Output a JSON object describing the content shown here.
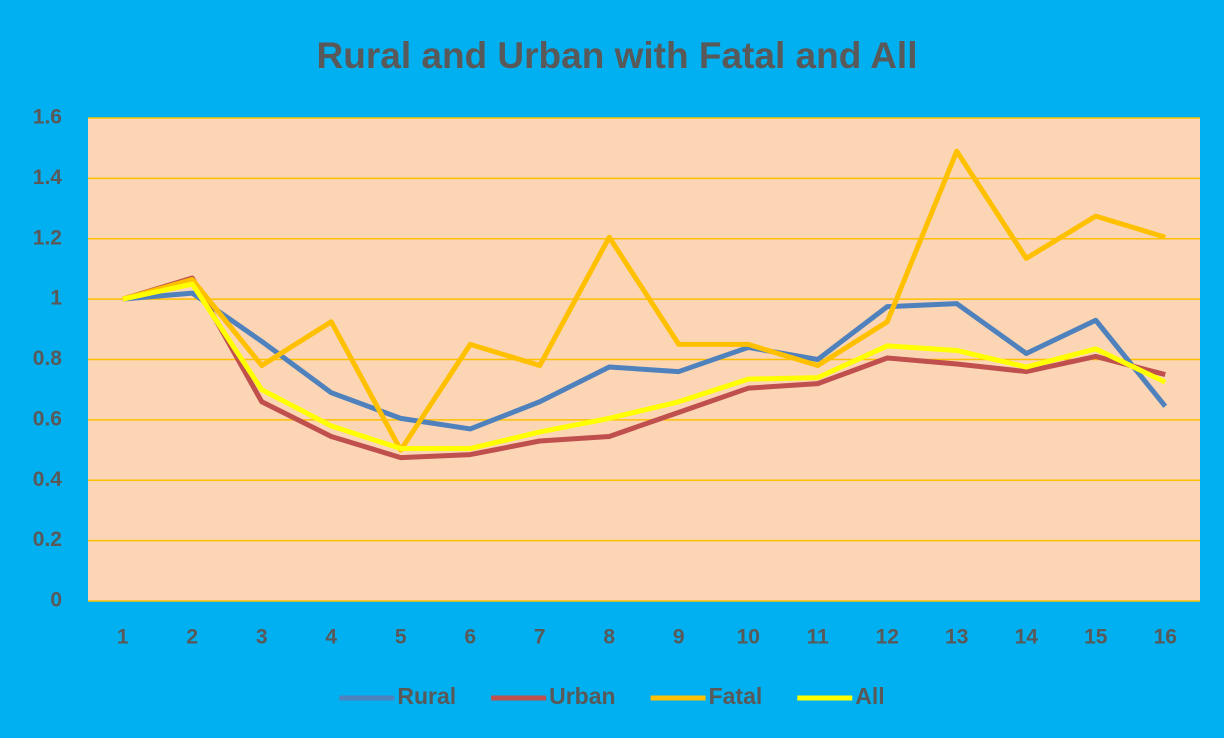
{
  "chart_data": {
    "type": "line",
    "title": "Rural and Urban with Fatal and All",
    "categories": [
      "1",
      "2",
      "3",
      "4",
      "5",
      "6",
      "7",
      "8",
      "9",
      "10",
      "11",
      "12",
      "13",
      "14",
      "15",
      "16"
    ],
    "series": [
      {
        "name": "Rural",
        "color": "#4f81bd",
        "values": [
          1.0,
          1.02,
          0.86,
          0.69,
          0.605,
          0.57,
          0.66,
          0.775,
          0.76,
          0.84,
          0.8,
          0.975,
          0.985,
          0.82,
          0.93,
          0.645
        ]
      },
      {
        "name": "Urban",
        "color": "#c0504d",
        "values": [
          1.0,
          1.07,
          0.66,
          0.545,
          0.475,
          0.485,
          0.53,
          0.545,
          0.625,
          0.705,
          0.72,
          0.805,
          0.785,
          0.76,
          0.81,
          0.75
        ]
      },
      {
        "name": "Fatal",
        "color": "#ffc000",
        "values": [
          1.0,
          1.065,
          0.78,
          0.925,
          0.5,
          0.85,
          0.78,
          1.205,
          0.85,
          0.85,
          0.78,
          0.925,
          1.49,
          1.135,
          1.275,
          1.205
        ]
      },
      {
        "name": "All",
        "color": "#ffff00",
        "values": [
          1.0,
          1.05,
          0.7,
          0.58,
          0.505,
          0.505,
          0.56,
          0.605,
          0.66,
          0.735,
          0.74,
          0.845,
          0.83,
          0.775,
          0.835,
          0.725
        ]
      }
    ],
    "ylim": [
      0,
      1.6
    ],
    "yticks": [
      0,
      0.2,
      0.4,
      0.6,
      0.8,
      1,
      1.2,
      1.4,
      1.6
    ],
    "grid": true,
    "grid_color": "#ffc000",
    "plot_background": "#fcd5b4",
    "background": "#00b0f0",
    "legend": "bottom"
  }
}
